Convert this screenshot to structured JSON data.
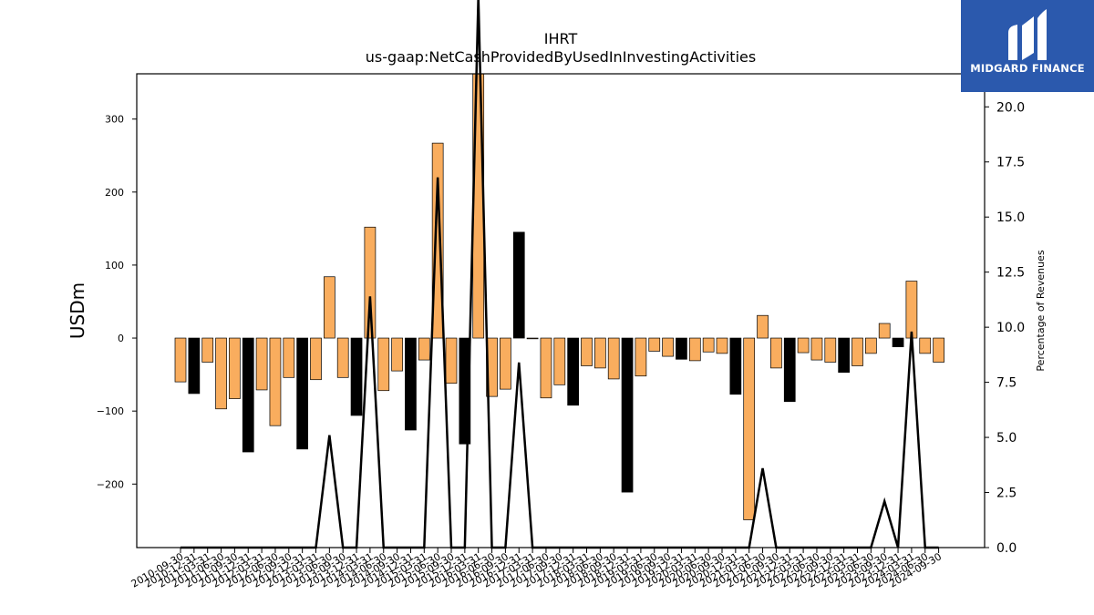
{
  "brand": {
    "name": "MIDGARD FINANCE",
    "logo_icon": "mf-monogram-icon",
    "bg_color": "#2b59ad"
  },
  "chart_data": {
    "type": "bar",
    "title": "IHRT",
    "subtitle": "us-gaap:NetCashProvidedByUsedInInvestingActivities",
    "ylabel": "USDm",
    "y2label": "Percentage of Revenues",
    "ylim": [
      -287,
      362
    ],
    "y2lim": [
      0,
      21.5
    ],
    "yticks": [
      -200,
      -100,
      0,
      100,
      200,
      300
    ],
    "y2ticks": [
      0,
      2.5,
      5,
      7.5,
      10,
      12.5,
      15,
      17.5,
      20
    ],
    "colors": {
      "positive_quarter": "#f9ad5e",
      "annual": "#000000",
      "line": "#000000"
    },
    "categories": [
      "2010-09-30",
      "2010-12-31",
      "2011-03-31",
      "2011-06-30",
      "2011-09-30",
      "2011-12-31",
      "2012-03-31",
      "2012-06-30",
      "2012-09-30",
      "2012-12-31",
      "2013-03-31",
      "2013-06-30",
      "2013-09-30",
      "2013-12-31",
      "2014-03-31",
      "2014-06-30",
      "2014-09-30",
      "2014-12-31",
      "2015-03-31",
      "2015-06-30",
      "2015-09-30",
      "2015-12-31",
      "2016-03-31",
      "2016-06-30",
      "2016-09-30",
      "2016-12-31",
      "2017-03-31",
      "2017-06-30",
      "2017-09-30",
      "2017-12-31",
      "2018-03-31",
      "2018-06-30",
      "2018-09-30",
      "2018-12-31",
      "2019-03-31",
      "2019-06-30",
      "2019-09-30",
      "2019-12-31",
      "2020-03-31",
      "2020-06-30",
      "2020-09-30",
      "2020-12-31",
      "2021-03-31",
      "2021-06-30",
      "2021-09-30",
      "2021-12-31",
      "2022-03-31",
      "2022-06-30",
      "2022-09-30",
      "2022-12-31",
      "2023-03-31",
      "2023-06-30",
      "2023-09-30",
      "2023-12-31",
      "2024-03-31",
      "2024-06-30",
      "2024-09-30"
    ],
    "series": [
      {
        "values": [
          -60,
          -76,
          -33,
          -97,
          -83,
          -156,
          -71,
          -120,
          -54,
          -152,
          -57,
          84,
          -54,
          -106,
          152,
          -72,
          -45,
          -126,
          -30,
          267,
          -62,
          -145,
          380,
          -80,
          -70,
          145,
          0,
          -82,
          -64,
          -92,
          -38,
          -41,
          -56,
          -211,
          -52,
          -18,
          -25,
          -29,
          -31,
          -19,
          -21,
          -77,
          -249,
          31,
          -41,
          -87,
          -20,
          -30,
          -33,
          -47,
          -38,
          -21,
          20,
          -12,
          78,
          -21,
          -33
        ],
        "annual": [
          false,
          true,
          false,
          false,
          false,
          true,
          false,
          false,
          false,
          true,
          false,
          false,
          false,
          true,
          false,
          false,
          false,
          true,
          false,
          false,
          false,
          true,
          false,
          false,
          false,
          true,
          false,
          false,
          false,
          true,
          false,
          false,
          false,
          true,
          false,
          false,
          false,
          true,
          false,
          false,
          false,
          true,
          false,
          false,
          false,
          true,
          false,
          false,
          false,
          true,
          false,
          false,
          false,
          true,
          false,
          false,
          false
        ]
      },
      {
        "values": [
          0,
          0,
          0,
          0,
          0,
          0,
          0,
          0,
          0,
          0,
          0,
          5.1,
          0,
          0,
          11.4,
          0,
          0,
          0,
          0,
          16.8,
          0,
          0,
          25,
          0,
          0,
          8.4,
          0,
          0,
          0,
          0,
          0,
          0,
          0,
          0,
          0,
          0,
          0,
          0,
          0,
          0,
          0,
          0,
          0,
          3.6,
          0,
          0,
          0,
          0,
          0,
          0,
          0,
          0,
          2.1,
          0,
          9.8,
          0,
          0
        ]
      }
    ]
  }
}
